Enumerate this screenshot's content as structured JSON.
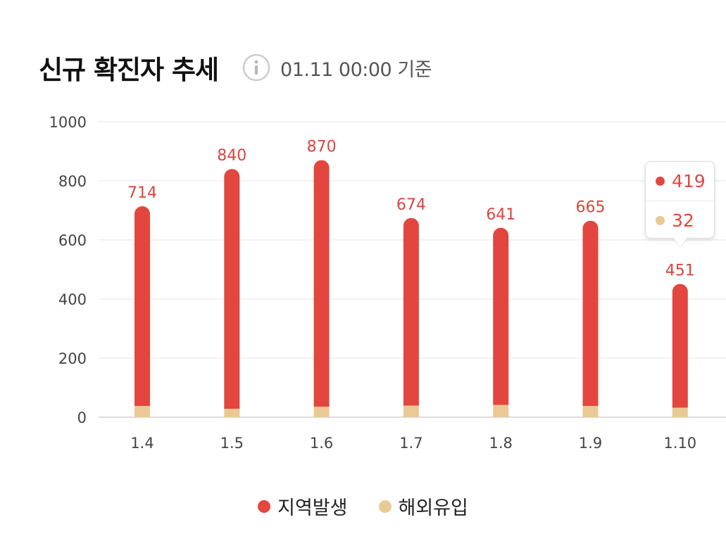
{
  "header": {
    "title": "신규 확진자 추세",
    "basis": "01.11 00:00 기준"
  },
  "colors": {
    "local": "#e3463f",
    "imported": "#ebc994",
    "label": "#d9453e",
    "grid": "#eeeeee",
    "axis_text": "#444444"
  },
  "chart_data": {
    "type": "bar",
    "stacked": true,
    "categories": [
      "1.4",
      "1.5",
      "1.6",
      "1.7",
      "1.8",
      "1.9",
      "1.10"
    ],
    "series": [
      {
        "name": "지역발생",
        "color": "#e3463f",
        "values": [
          676,
          812,
          835,
          635,
          600,
          627,
          419
        ]
      },
      {
        "name": "해외유입",
        "color": "#ebc994",
        "values": [
          38,
          28,
          35,
          39,
          41,
          38,
          32
        ]
      }
    ],
    "totals": [
      714,
      840,
      870,
      674,
      641,
      665,
      451
    ],
    "yticks": [
      "0",
      "200",
      "400",
      "600",
      "800",
      "1000"
    ],
    "ylim": [
      0,
      1000
    ],
    "grid": true,
    "legend_position": "bottom-center"
  },
  "tooltip": {
    "local_value": "419",
    "imported_value": "32"
  },
  "legend": [
    {
      "label": "지역발생",
      "color": "#e3463f"
    },
    {
      "label": "해외유입",
      "color": "#ebc994"
    }
  ]
}
